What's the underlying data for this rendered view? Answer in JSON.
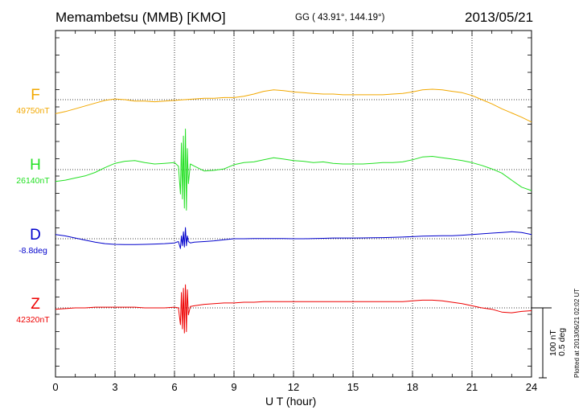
{
  "header": {
    "station": "Memambetsu (MMB)  [KMO]",
    "coords": "GG ( 43.91°, 144.19°)",
    "date": "2013/05/21"
  },
  "scale": {
    "nt": "100 nT",
    "deg": "0.5 deg"
  },
  "plotted": "Plotted at 2013/06/21 02:02 UT",
  "chart_data": {
    "type": "line",
    "xlabel": "U T (hour)",
    "xlim": [
      0,
      24
    ],
    "xticks": [
      "0",
      "3",
      "6",
      "9",
      "12",
      "15",
      "18",
      "21",
      "24"
    ],
    "scale_per_division": {
      "nT": 100,
      "deg": 0.5
    },
    "grid": true,
    "series": [
      {
        "name": "F",
        "baseline_label": "49750nT",
        "baseline": 49750,
        "unit": "nT",
        "color": "#f2a800",
        "x": [
          0,
          0.5,
          1,
          1.5,
          2,
          2.5,
          3,
          3.5,
          4,
          4.5,
          5,
          5.5,
          6,
          6.5,
          7,
          7.5,
          8,
          8.5,
          9,
          9.5,
          10,
          10.5,
          11,
          11.5,
          12,
          12.5,
          13,
          13.5,
          14,
          14.5,
          15,
          15.5,
          16,
          16.5,
          17,
          17.5,
          18,
          18.5,
          19,
          19.5,
          20,
          20.5,
          21,
          21.5,
          22,
          22.5,
          23,
          23.5,
          24
        ],
        "y": [
          49730,
          49733,
          49737,
          49741,
          49745,
          49749,
          49751,
          49750,
          49748,
          49748,
          49747,
          49748,
          49749,
          49750,
          49751,
          49752,
          49752,
          49753,
          49753,
          49755,
          49758,
          49762,
          49764,
          49763,
          49761,
          49760,
          49759,
          49758,
          49758,
          49757,
          49757,
          49757,
          49757,
          49757,
          49758,
          49759,
          49761,
          49764,
          49765,
          49764,
          49762,
          49760,
          49756,
          49750,
          49744,
          49737,
          49731,
          49725,
          49718
        ]
      },
      {
        "name": "H",
        "baseline_label": "26140nT",
        "baseline": 26140,
        "unit": "nT",
        "color": "#22e022",
        "x": [
          0,
          0.5,
          1,
          1.5,
          2,
          2.5,
          3,
          3.5,
          4,
          4.5,
          5,
          5.5,
          6,
          6.2,
          6.3,
          6.35,
          6.4,
          6.45,
          6.5,
          6.55,
          6.6,
          6.65,
          6.7,
          6.8,
          7,
          7.5,
          8,
          8.5,
          9,
          9.5,
          10,
          10.5,
          11,
          11.5,
          12,
          12.5,
          13,
          13.5,
          14,
          14.5,
          15,
          15.5,
          16,
          16.5,
          17,
          17.5,
          18,
          18.5,
          19,
          19.5,
          20,
          20.5,
          21,
          21.5,
          22,
          22.5,
          23,
          23.5,
          24
        ],
        "y": [
          26123,
          26125,
          26128,
          26131,
          26136,
          26143,
          26149,
          26152,
          26153,
          26150,
          26148,
          26149,
          26150,
          26145,
          26105,
          26178,
          26098,
          26188,
          26085,
          26198,
          26082,
          26170,
          26120,
          26148,
          26145,
          26138,
          26139,
          26141,
          26147,
          26150,
          26151,
          26154,
          26157,
          26155,
          26153,
          26152,
          26150,
          26151,
          26149,
          26148,
          26148,
          26148,
          26149,
          26150,
          26150,
          26151,
          26154,
          26158,
          26159,
          26157,
          26155,
          26153,
          26150,
          26146,
          26141,
          26135,
          26125,
          26115,
          26110
        ]
      },
      {
        "name": "D",
        "baseline_label": "-8.8deg",
        "baseline": -8.8,
        "unit": "deg",
        "color": "#0000cc",
        "x": [
          0,
          0.5,
          1,
          1.5,
          2,
          2.5,
          3,
          3.5,
          4,
          4.5,
          5,
          5.5,
          6,
          6.2,
          6.3,
          6.35,
          6.4,
          6.45,
          6.5,
          6.55,
          6.6,
          6.65,
          6.7,
          6.8,
          7,
          7.5,
          8,
          8.5,
          9,
          9.5,
          10,
          10.5,
          11,
          11.5,
          12,
          12.5,
          13,
          13.5,
          14,
          14.5,
          15,
          15.5,
          16,
          16.5,
          17,
          17.5,
          18,
          18.5,
          19,
          19.5,
          20,
          20.5,
          21,
          21.5,
          22,
          22.5,
          23,
          23.5,
          24
        ],
        "y": [
          -8.77,
          -8.78,
          -8.795,
          -8.81,
          -8.825,
          -8.835,
          -8.84,
          -8.842,
          -8.842,
          -8.84,
          -8.838,
          -8.835,
          -8.83,
          -8.82,
          -8.87,
          -8.78,
          -8.85,
          -8.75,
          -8.86,
          -8.72,
          -8.85,
          -8.78,
          -8.82,
          -8.83,
          -8.825,
          -8.82,
          -8.815,
          -8.807,
          -8.8,
          -8.8,
          -8.799,
          -8.799,
          -8.798,
          -8.799,
          -8.8,
          -8.8,
          -8.799,
          -8.797,
          -8.795,
          -8.795,
          -8.795,
          -8.794,
          -8.793,
          -8.792,
          -8.79,
          -8.788,
          -8.785,
          -8.781,
          -8.78,
          -8.779,
          -8.778,
          -8.775,
          -8.77,
          -8.765,
          -8.76,
          -8.755,
          -8.75,
          -8.755,
          -8.77
        ]
      },
      {
        "name": "Z",
        "baseline_label": "42320nT",
        "baseline": 42320,
        "unit": "nT",
        "color": "#ee0000",
        "x": [
          0,
          0.5,
          1,
          1.5,
          2,
          2.5,
          3,
          3.5,
          4,
          4.5,
          5,
          5.5,
          6,
          6.2,
          6.3,
          6.35,
          6.4,
          6.45,
          6.5,
          6.55,
          6.6,
          6.65,
          6.7,
          6.8,
          7,
          7.5,
          8,
          8.5,
          9,
          9.5,
          10,
          10.5,
          11,
          11.5,
          12,
          12.5,
          13,
          13.5,
          14,
          14.5,
          15,
          15.5,
          16,
          16.5,
          17,
          17.5,
          18,
          18.5,
          19,
          19.5,
          20,
          20.5,
          21,
          21.5,
          22,
          22.5,
          23,
          23.5,
          24
        ],
        "y": [
          42318,
          42319,
          42320,
          42320,
          42321,
          42321,
          42321,
          42321,
          42321,
          42320,
          42320,
          42320,
          42321,
          42320,
          42296,
          42342,
          42290,
          42348,
          42284,
          42353,
          42286,
          42346,
          42310,
          42322,
          42323,
          42325,
          42326,
          42327,
          42327,
          42328,
          42328,
          42329,
          42329,
          42329,
          42329,
          42329,
          42329,
          42329,
          42329,
          42329,
          42329,
          42329,
          42329,
          42329,
          42329,
          42329,
          42330,
          42331,
          42331,
          42330,
          42328,
          42326,
          42323,
          42320,
          42318,
          42314,
          42313,
          42315,
          42316
        ]
      }
    ]
  }
}
